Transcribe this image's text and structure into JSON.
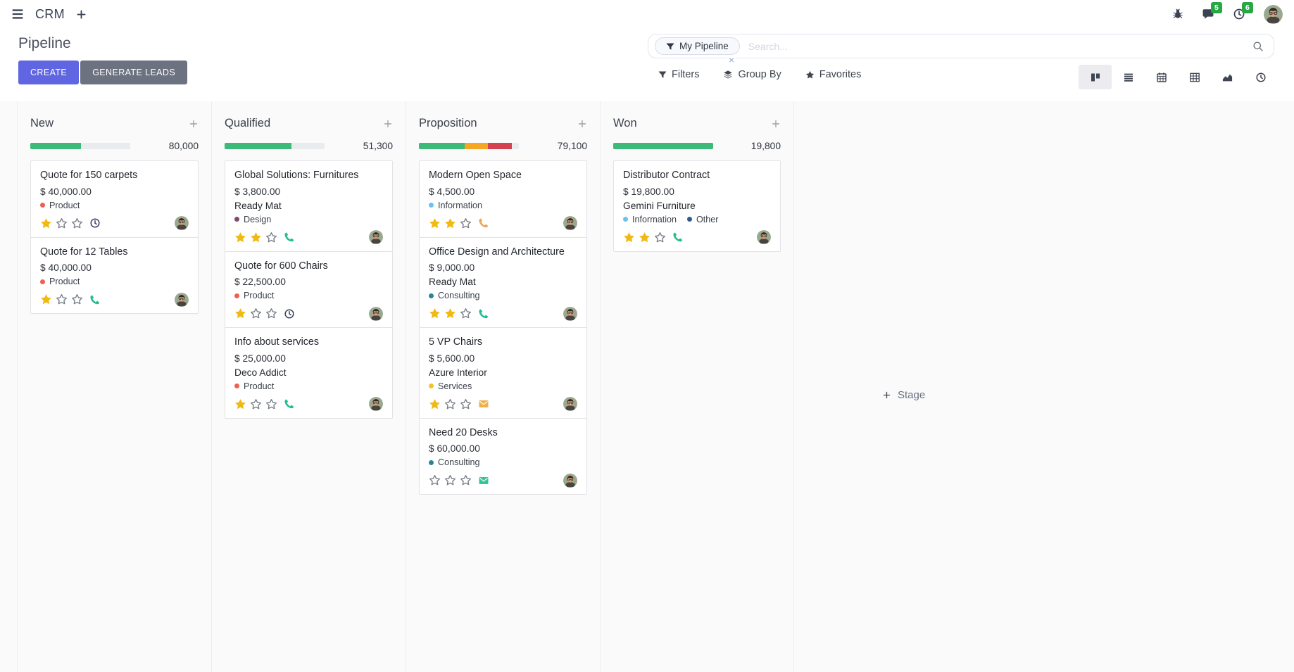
{
  "navbar": {
    "app_name": "CRM",
    "messages_badge": "5",
    "activities_badge": "6"
  },
  "control_panel": {
    "title": "Pipeline",
    "create_label": "CREATE",
    "generate_leads_label": "GENERATE LEADS",
    "search": {
      "facet_label": "My Pipeline",
      "remove_facet": "×",
      "placeholder": "Search..."
    },
    "filters_label": "Filters",
    "group_by_label": "Group By",
    "favorites_label": "Favorites",
    "view_switcher": {
      "active": "kanban",
      "views": [
        "kanban",
        "list",
        "calendar",
        "pivot",
        "graph",
        "activity"
      ]
    }
  },
  "colors": {
    "primary_button": "#6065e1",
    "secondary_button": "#6d7280",
    "badge_green": "#28a745",
    "progress_green": "#3dba79",
    "progress_yellow": "#f5a623",
    "progress_red": "#d34250",
    "star_gold": "#f0b913"
  },
  "kanban": {
    "add_stage_label": "Stage",
    "columns": [
      {
        "name": "New",
        "total": "80,000",
        "progress": [
          {
            "color": "#3dba79",
            "pct": 51
          }
        ],
        "cards": [
          {
            "title": "Quote for 150 carpets",
            "amount": "$ 40,000.00",
            "partner": null,
            "tags": [
              {
                "label": "Product",
                "color": "#ef6050"
              }
            ],
            "stars_filled": 1,
            "stars_total": 3,
            "activity": {
              "icon": "clock",
              "color": "#39405d"
            }
          },
          {
            "title": "Quote for 12 Tables",
            "amount": "$ 40,000.00",
            "partner": null,
            "tags": [
              {
                "label": "Product",
                "color": "#ef6050"
              }
            ],
            "stars_filled": 1,
            "stars_total": 3,
            "activity": {
              "icon": "phone",
              "color": "#25bd92"
            }
          }
        ]
      },
      {
        "name": "Qualified",
        "total": "51,300",
        "progress": [
          {
            "color": "#3dba79",
            "pct": 67
          }
        ],
        "cards": [
          {
            "title": "Global Solutions: Furnitures",
            "amount": "$ 3,800.00",
            "partner": "Ready Mat",
            "tags": [
              {
                "label": "Design",
                "color": "#814968"
              }
            ],
            "stars_filled": 2,
            "stars_total": 3,
            "activity": {
              "icon": "phone",
              "color": "#25bd92"
            }
          },
          {
            "title": "Quote for 600 Chairs",
            "amount": "$ 22,500.00",
            "partner": null,
            "tags": [
              {
                "label": "Product",
                "color": "#ef6050"
              }
            ],
            "stars_filled": 1,
            "stars_total": 3,
            "activity": {
              "icon": "clock",
              "color": "#39405d"
            }
          },
          {
            "title": "Info about services",
            "amount": "$ 25,000.00",
            "partner": "Deco Addict",
            "tags": [
              {
                "label": "Product",
                "color": "#ef6050"
              }
            ],
            "stars_filled": 1,
            "stars_total": 3,
            "activity": {
              "icon": "phone",
              "color": "#25bd92"
            }
          }
        ]
      },
      {
        "name": "Proposition",
        "total": "79,100",
        "progress": [
          {
            "color": "#3dba79",
            "pct": 46
          },
          {
            "color": "#f5a623",
            "pct": 23
          },
          {
            "color": "#d34250",
            "pct": 24
          }
        ],
        "cards": [
          {
            "title": "Modern Open Space",
            "amount": "$ 4,500.00",
            "partner": null,
            "tags": [
              {
                "label": "Information",
                "color": "#6cc1ed"
              }
            ],
            "stars_filled": 2,
            "stars_total": 3,
            "activity": {
              "icon": "phone",
              "color": "#eca65e"
            }
          },
          {
            "title": "Office Design and Architecture",
            "amount": "$ 9,000.00",
            "partner": "Ready Mat",
            "tags": [
              {
                "label": "Consulting",
                "color": "#2c8397"
              }
            ],
            "stars_filled": 2,
            "stars_total": 3,
            "activity": {
              "icon": "phone",
              "color": "#25bd92"
            }
          },
          {
            "title": "5 VP Chairs",
            "amount": "$ 5,600.00",
            "partner": "Azure Interior",
            "tags": [
              {
                "label": "Services",
                "color": "#f0c429"
              }
            ],
            "stars_filled": 1,
            "stars_total": 3,
            "activity": {
              "icon": "envelope",
              "color": "#efaf4e"
            }
          },
          {
            "title": "Need 20 Desks",
            "amount": "$ 60,000.00",
            "partner": null,
            "tags": [
              {
                "label": "Consulting",
                "color": "#2c8397"
              }
            ],
            "stars_filled": 0,
            "stars_total": 3,
            "activity": {
              "icon": "envelope",
              "color": "#2fc69a"
            }
          }
        ]
      },
      {
        "name": "Won",
        "total": "19,800",
        "progress": [
          {
            "color": "#3dba79",
            "pct": 100
          }
        ],
        "cards": [
          {
            "title": "Distributor Contract",
            "amount": "$ 19,800.00",
            "partner": "Gemini Furniture",
            "tags": [
              {
                "label": "Information",
                "color": "#6cc1ed"
              },
              {
                "label": "Other",
                "color": "#2e5b8f"
              }
            ],
            "stars_filled": 2,
            "stars_total": 3,
            "activity": {
              "icon": "phone",
              "color": "#25bd92"
            }
          }
        ]
      }
    ]
  }
}
